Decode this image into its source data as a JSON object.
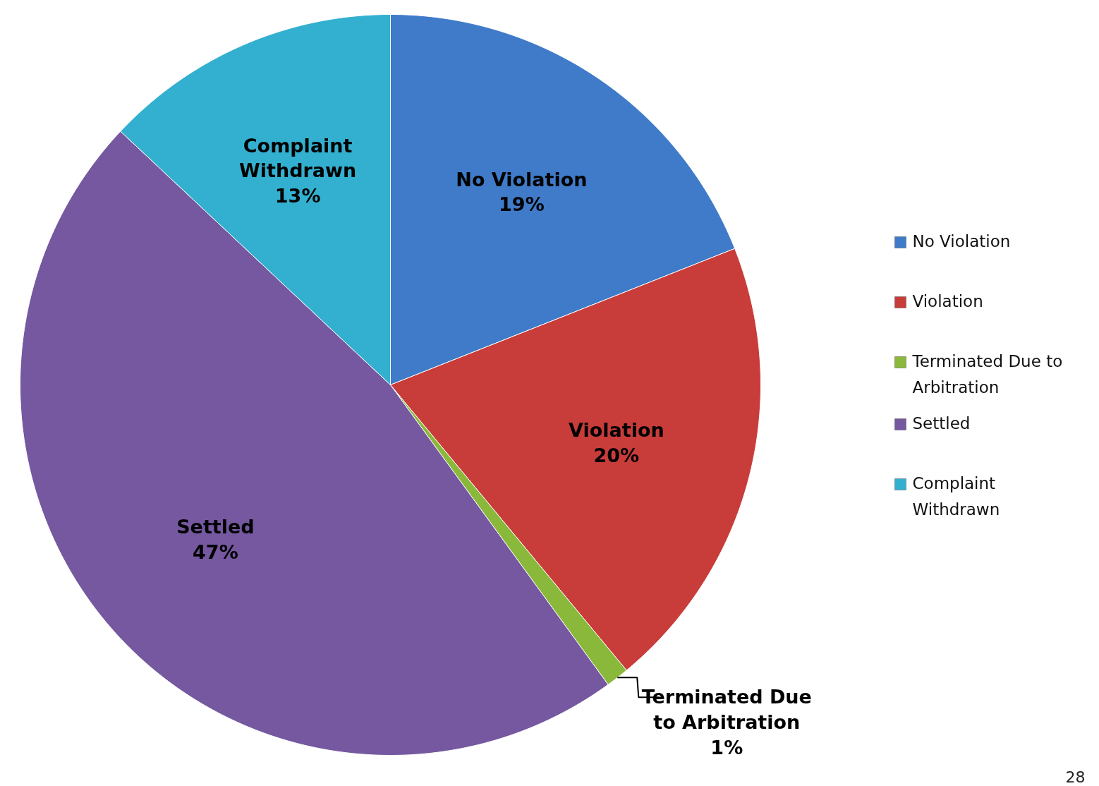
{
  "chart_data": {
    "type": "pie",
    "categories": [
      "No Violation",
      "Violation",
      "Terminated Due to Arbitration",
      "Settled",
      "Complaint Withdrawn"
    ],
    "values": [
      19,
      20,
      1,
      47,
      13
    ],
    "value_labels": [
      "19%",
      "20%",
      "1%",
      "47%",
      "13%"
    ],
    "colors": [
      "#3f7bc8",
      "#c83c3a",
      "#8ab83a",
      "#7558a0",
      "#33b0d0"
    ],
    "legend": "right",
    "annotations": [
      "28"
    ]
  }
}
